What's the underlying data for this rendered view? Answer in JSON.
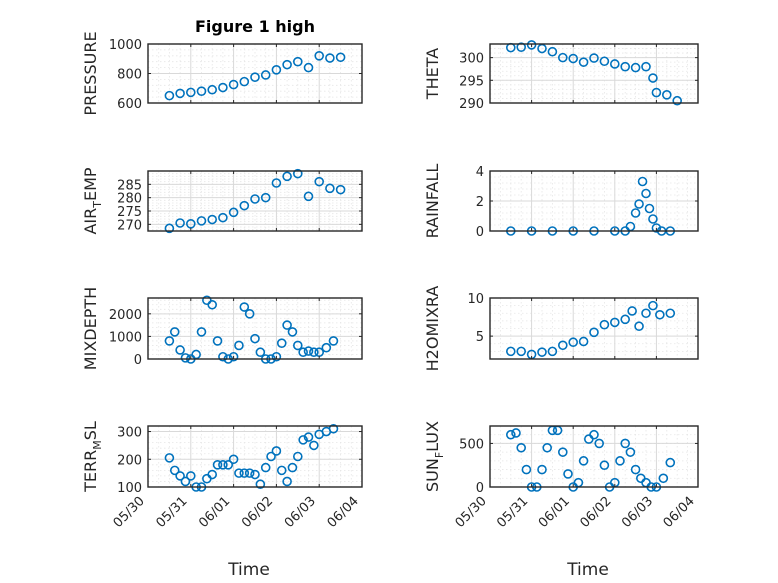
{
  "chart_data": [
    {
      "type": "scatter",
      "title": "Figure 1 high",
      "ylabel": "PRESSURE",
      "xlabel": "",
      "ylim": [
        600,
        1000
      ],
      "yticks": [
        "600",
        "800",
        "1000"
      ],
      "grid": true,
      "color": "#0072BD",
      "x": [
        "05/30 12:00",
        "05/30 18:00",
        "05/31 00:00",
        "05/31 06:00",
        "05/31 12:00",
        "05/31 18:00",
        "06/01 00:00",
        "06/01 06:00",
        "06/01 12:00",
        "06/01 18:00",
        "06/02 00:00",
        "06/02 06:00",
        "06/02 12:00",
        "06/02 18:00",
        "06/03 00:00",
        "06/03 06:00",
        "06/03 12:00"
      ],
      "y": [
        650,
        665,
        672,
        680,
        690,
        705,
        725,
        745,
        775,
        790,
        825,
        860,
        880,
        840,
        920,
        905,
        910
      ]
    },
    {
      "type": "scatter",
      "title": "",
      "ylabel": "THETA",
      "xlabel": "",
      "ylim": [
        290,
        303
      ],
      "yticks": [
        "290",
        "295",
        "300"
      ],
      "grid": true,
      "color": "#0072BD",
      "x": [
        "05/30 12:00",
        "05/30 18:00",
        "05/31 00:00",
        "05/31 06:00",
        "05/31 12:00",
        "05/31 18:00",
        "06/01 00:00",
        "06/01 06:00",
        "06/01 12:00",
        "06/01 18:00",
        "06/02 00:00",
        "06/02 06:00",
        "06/02 12:00",
        "06/02 18:00",
        "06/02 22:00",
        "06/03 00:00",
        "06/03 06:00",
        "06/03 12:00"
      ],
      "y": [
        302.2,
        302.3,
        302.8,
        302.0,
        301.3,
        300.0,
        299.8,
        299.0,
        299.9,
        299.2,
        298.6,
        298.0,
        297.8,
        298.0,
        295.5,
        292.3,
        291.8,
        290.5
      ]
    },
    {
      "type": "scatter",
      "title": "",
      "ylabel": "AIR_TEMP",
      "xlabel": "",
      "ylim": [
        267.5,
        290
      ],
      "yticks": [
        "270",
        "275",
        "280",
        "285"
      ],
      "grid": true,
      "color": "#0072BD",
      "x": [
        "05/30 12:00",
        "05/30 18:00",
        "05/31 00:00",
        "05/31 06:00",
        "05/31 12:00",
        "05/31 18:00",
        "06/01 00:00",
        "06/01 06:00",
        "06/01 12:00",
        "06/01 18:00",
        "06/02 00:00",
        "06/02 06:00",
        "06/02 12:00",
        "06/02 18:00",
        "06/03 00:00",
        "06/03 06:00",
        "06/03 12:00"
      ],
      "y": [
        268.5,
        270.5,
        270.2,
        271.3,
        271.8,
        272.5,
        274.5,
        277.0,
        279.5,
        280.0,
        285.5,
        288.0,
        289.0,
        280.5,
        286.0,
        283.5,
        283.0
      ]
    },
    {
      "type": "scatter",
      "title": "",
      "ylabel": "RAINFALL",
      "xlabel": "",
      "ylim": [
        0,
        4
      ],
      "yticks": [
        "0",
        "2",
        "4"
      ],
      "grid": true,
      "color": "#0072BD",
      "x": [
        "05/30 12:00",
        "05/31 00:00",
        "05/31 12:00",
        "06/01 00:00",
        "06/01 12:00",
        "06/02 00:00",
        "06/02 06:00",
        "06/02 09:00",
        "06/02 12:00",
        "06/02 14:00",
        "06/02 16:00",
        "06/02 18:00",
        "06/02 20:00",
        "06/02 22:00",
        "06/03 00:00",
        "06/03 03:00",
        "06/03 08:00"
      ],
      "y": [
        0,
        0,
        0,
        0,
        0,
        0,
        0,
        0.3,
        1.2,
        1.8,
        3.3,
        2.5,
        1.5,
        0.8,
        0.2,
        0,
        0
      ]
    },
    {
      "type": "scatter",
      "title": "",
      "ylabel": "MIXDEPTH",
      "xlabel": "",
      "ylim": [
        0,
        2700
      ],
      "yticks": [
        "0",
        "1000",
        "2000"
      ],
      "grid": true,
      "color": "#0072BD",
      "x": [
        "05/30 12:00",
        "05/30 15:00",
        "05/30 18:00",
        "05/30 21:00",
        "05/31 00:00",
        "05/31 03:00",
        "05/31 06:00",
        "05/31 09:00",
        "05/31 12:00",
        "05/31 15:00",
        "05/31 18:00",
        "05/31 21:00",
        "06/01 00:00",
        "06/01 03:00",
        "06/01 06:00",
        "06/01 09:00",
        "06/01 12:00",
        "06/01 15:00",
        "06/01 18:00",
        "06/01 21:00",
        "06/02 00:00",
        "06/02 03:00",
        "06/02 06:00",
        "06/02 09:00",
        "06/02 12:00",
        "06/02 15:00",
        "06/02 18:00",
        "06/02 21:00",
        "06/03 00:00",
        "06/03 04:00",
        "06/03 08:00"
      ],
      "y": [
        800,
        1200,
        400,
        50,
        0,
        200,
        1200,
        2600,
        2400,
        800,
        100,
        0,
        100,
        600,
        2300,
        2000,
        900,
        300,
        0,
        0,
        100,
        700,
        1500,
        1200,
        600,
        300,
        350,
        300,
        300,
        500,
        800
      ]
    },
    {
      "type": "scatter",
      "title": "",
      "ylabel": "H2OMIXRA",
      "xlabel": "",
      "ylim": [
        2,
        10
      ],
      "yticks": [
        "5",
        "10"
      ],
      "grid": true,
      "color": "#0072BD",
      "x": [
        "05/30 12:00",
        "05/30 18:00",
        "05/31 00:00",
        "05/31 06:00",
        "05/31 12:00",
        "05/31 18:00",
        "06/01 00:00",
        "06/01 06:00",
        "06/01 12:00",
        "06/01 18:00",
        "06/02 00:00",
        "06/02 06:00",
        "06/02 10:00",
        "06/02 14:00",
        "06/02 18:00",
        "06/02 22:00",
        "06/03 02:00",
        "06/03 08:00"
      ],
      "y": [
        3.0,
        3.0,
        2.6,
        2.9,
        3.0,
        3.8,
        4.2,
        4.3,
        5.5,
        6.5,
        6.8,
        7.2,
        8.3,
        6.3,
        8.0,
        9.0,
        7.8,
        8.0
      ]
    },
    {
      "type": "scatter",
      "title": "",
      "ylabel": "TERR_MSL",
      "xlabel": "Time",
      "ylim": [
        100,
        320
      ],
      "yticks": [
        "100",
        "200",
        "300"
      ],
      "grid": true,
      "color": "#0072BD",
      "xticks": [
        "05/30",
        "05/31",
        "06/01",
        "06/02",
        "06/03",
        "06/04"
      ],
      "x": [
        "05/30 12:00",
        "05/30 15:00",
        "05/30 18:00",
        "05/30 21:00",
        "05/31 00:00",
        "05/31 03:00",
        "05/31 06:00",
        "05/31 09:00",
        "05/31 12:00",
        "05/31 15:00",
        "05/31 18:00",
        "05/31 21:00",
        "06/01 00:00",
        "06/01 03:00",
        "06/01 06:00",
        "06/01 09:00",
        "06/01 12:00",
        "06/01 15:00",
        "06/01 18:00",
        "06/01 21:00",
        "06/02 00:00",
        "06/02 03:00",
        "06/02 06:00",
        "06/02 09:00",
        "06/02 12:00",
        "06/02 15:00",
        "06/02 18:00",
        "06/02 21:00",
        "06/03 00:00",
        "06/03 04:00",
        "06/03 08:00"
      ],
      "y": [
        205,
        160,
        140,
        120,
        140,
        100,
        100,
        130,
        145,
        180,
        180,
        180,
        200,
        150,
        150,
        150,
        145,
        110,
        170,
        210,
        230,
        160,
        120,
        170,
        210,
        270,
        280,
        250,
        290,
        300,
        310
      ]
    },
    {
      "type": "scatter",
      "title": "",
      "ylabel": "SUN_FLUX",
      "xlabel": "Time",
      "ylim": [
        0,
        700
      ],
      "yticks": [
        "0",
        "500"
      ],
      "grid": true,
      "color": "#0072BD",
      "xticks": [
        "05/30",
        "05/31",
        "06/01",
        "06/02",
        "06/03",
        "06/04"
      ],
      "x": [
        "05/30 12:00",
        "05/30 15:00",
        "05/30 18:00",
        "05/30 21:00",
        "05/31 00:00",
        "05/31 03:00",
        "05/31 06:00",
        "05/31 09:00",
        "05/31 12:00",
        "05/31 15:00",
        "05/31 18:00",
        "05/31 21:00",
        "06/01 00:00",
        "06/01 03:00",
        "06/01 06:00",
        "06/01 09:00",
        "06/01 12:00",
        "06/01 15:00",
        "06/01 18:00",
        "06/01 21:00",
        "06/02 00:00",
        "06/02 03:00",
        "06/02 06:00",
        "06/02 09:00",
        "06/02 12:00",
        "06/02 15:00",
        "06/02 18:00",
        "06/02 21:00",
        "06/03 00:00",
        "06/03 04:00",
        "06/03 08:00"
      ],
      "y": [
        600,
        620,
        450,
        200,
        0,
        0,
        200,
        450,
        650,
        650,
        400,
        150,
        0,
        50,
        300,
        550,
        600,
        500,
        250,
        0,
        50,
        300,
        500,
        400,
        200,
        100,
        50,
        0,
        0,
        100,
        280
      ]
    }
  ]
}
